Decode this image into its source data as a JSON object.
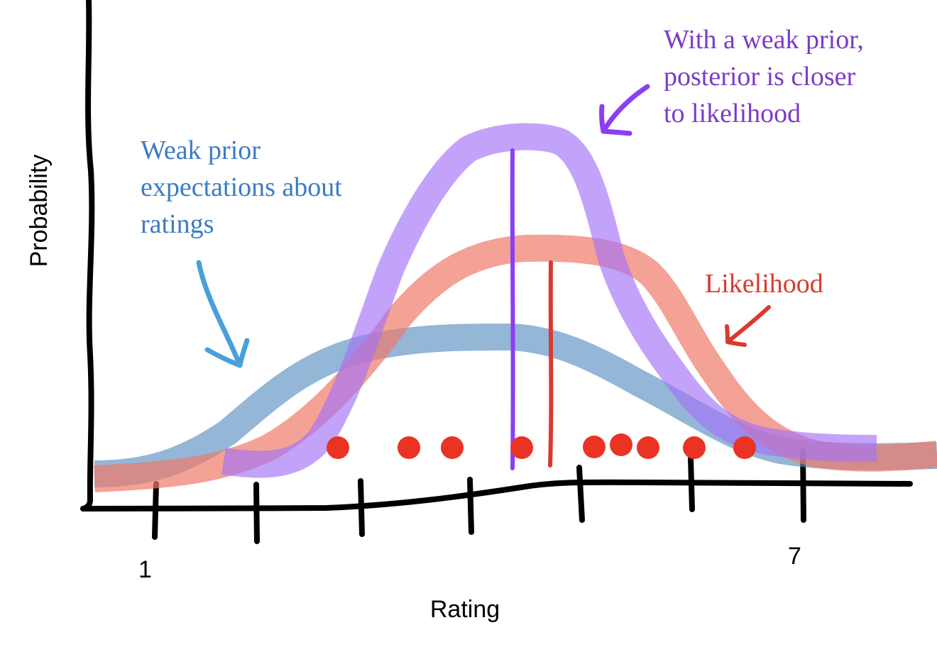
{
  "axes": {
    "x_label": "Rating",
    "y_label": "Probability",
    "tick_labels": [
      "1",
      "7"
    ]
  },
  "annotations": {
    "prior": [
      "Weak prior",
      "expectations about",
      "ratings"
    ],
    "posterior": [
      "With a weak prior,",
      "posterior is closer",
      "to likelihood"
    ],
    "likelihood": "Likelihood"
  },
  "colors": {
    "axis": "#000000",
    "prior": "#5b8fc2",
    "prior_text": "#3b7cc3",
    "prior_arrow": "#4a9fd8",
    "likelihood": "#ee7a68",
    "likelihood_text": "#d93a2e",
    "posterior": "#a371f7",
    "posterior_line": "#8a3ef5",
    "posterior_text": "#7b3bc7",
    "data_points": "#ea3323"
  }
}
